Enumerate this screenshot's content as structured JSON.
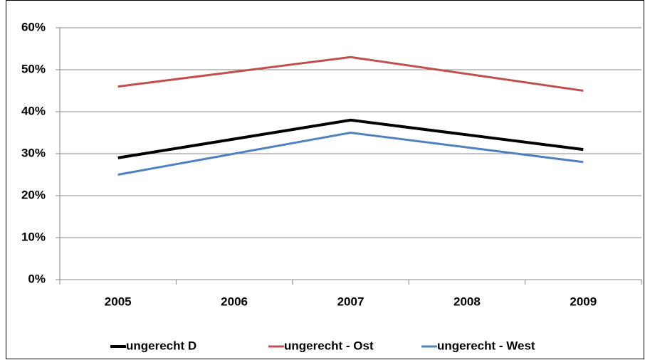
{
  "chart_data": {
    "type": "line",
    "categories": [
      "2005",
      "2006",
      "2007",
      "2008",
      "2009"
    ],
    "series": [
      {
        "name": "ungerecht D",
        "color": "#000000",
        "values": [
          29,
          33.5,
          38,
          34.5,
          31
        ]
      },
      {
        "name": "ungerecht - Ost",
        "color": "#c0504d",
        "values": [
          46,
          49.5,
          53,
          49,
          45
        ]
      },
      {
        "name": "ungerecht - West",
        "color": "#4f81bd",
        "values": [
          25,
          30,
          35,
          31.5,
          28
        ]
      }
    ],
    "ylim": [
      0,
      60
    ],
    "yticks": [
      {
        "value": 0,
        "label": "0%"
      },
      {
        "value": 10,
        "label": "10%"
      },
      {
        "value": 20,
        "label": "20%"
      },
      {
        "value": 30,
        "label": "30%"
      },
      {
        "value": 40,
        "label": "40%"
      },
      {
        "value": 50,
        "label": "50%"
      },
      {
        "value": 60,
        "label": "60%"
      }
    ],
    "grid": true,
    "legend": "bottom"
  }
}
